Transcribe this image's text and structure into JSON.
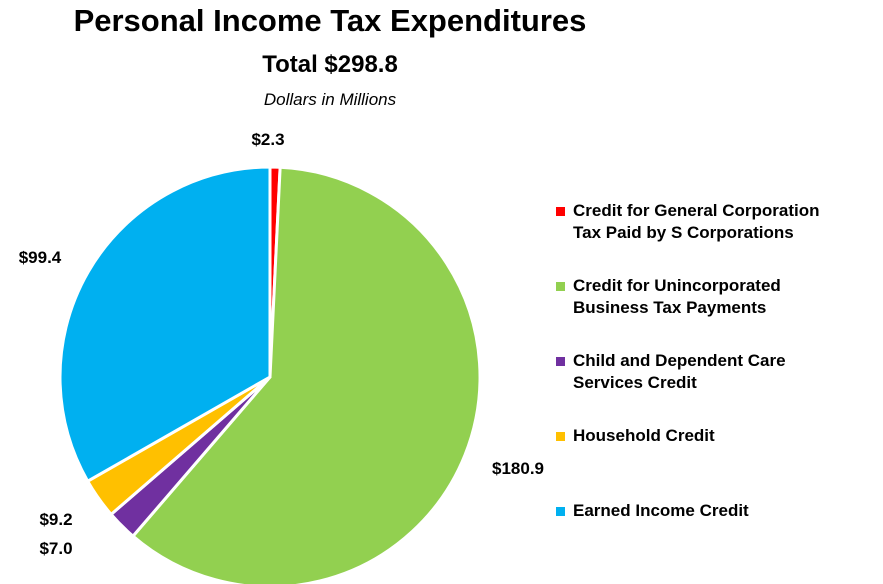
{
  "chart_data": {
    "type": "pie",
    "title": "Personal Income Tax Expenditures",
    "subtitle": "Total $298.8",
    "units_note": "Dollars in Millions",
    "legend_position": "right",
    "slices": [
      {
        "name": "Credit for General Corporation Tax Paid by S Corporations",
        "legend_label": "Credit for General Corporation\nTax Paid by S Corporations",
        "value": 2.3,
        "label": "$2.3",
        "color": "#ff0000"
      },
      {
        "name": "Credit for Unincorporated Business Tax Payments",
        "legend_label": "Credit for Unincorporated\nBusiness Tax Payments",
        "value": 180.9,
        "label": "$180.9",
        "color": "#92d050"
      },
      {
        "name": "Child and Dependent Care Services Credit",
        "legend_label": "Child and Dependent Care\nServices Credit",
        "value": 7.0,
        "label": "$7.0",
        "color": "#7030a0"
      },
      {
        "name": "Household Credit",
        "legend_label": "Household Credit",
        "value": 9.2,
        "label": "$9.2",
        "color": "#ffc000"
      },
      {
        "name": "Earned Income Credit",
        "legend_label": "Earned Income Credit",
        "value": 99.4,
        "label": "$99.4",
        "color": "#00b0f0"
      }
    ]
  }
}
